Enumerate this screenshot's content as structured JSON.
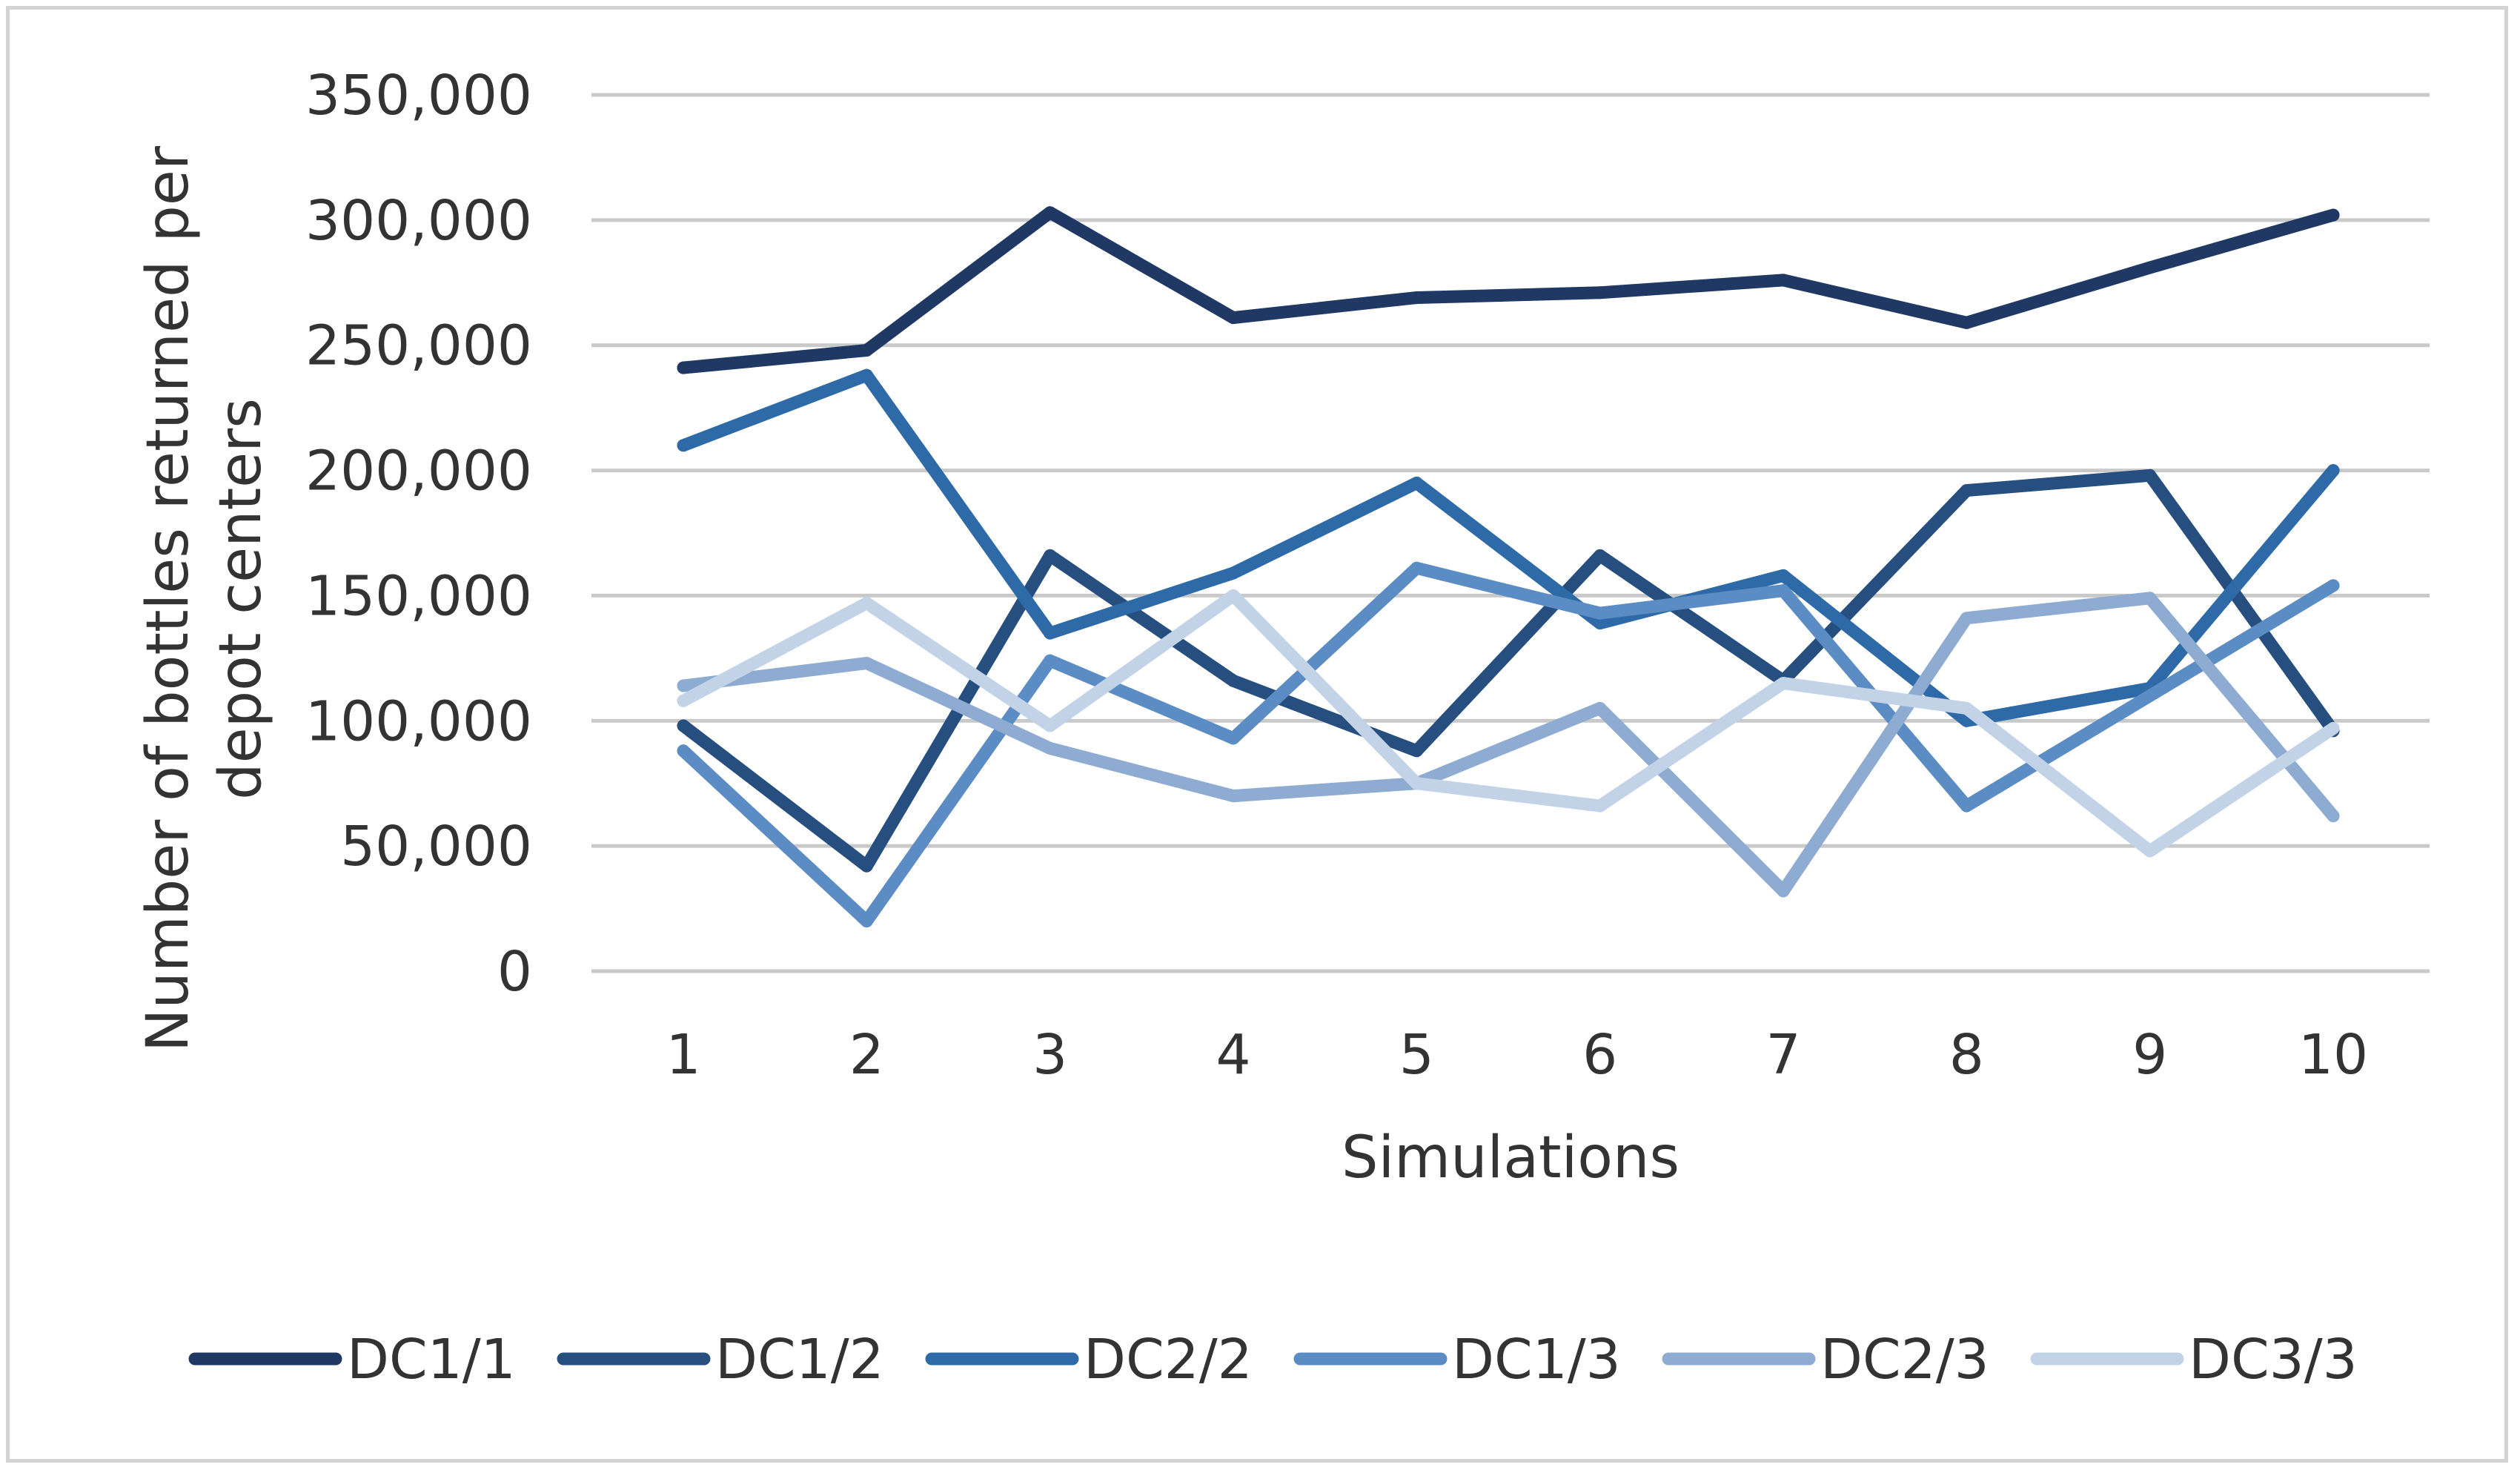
{
  "chart_data": {
    "type": "line",
    "title": "",
    "xlabel": "Simulations",
    "ylabel": "Number of bottles returned per depot centers",
    "ylabel_lines": [
      "Number of bottles returned per",
      "depot centers"
    ],
    "x": [
      1,
      2,
      3,
      4,
      5,
      6,
      7,
      8,
      9,
      10
    ],
    "x_tick_labels": [
      "1",
      "2",
      "3",
      "4",
      "5",
      "6",
      "7",
      "8",
      "9",
      "10"
    ],
    "ylim": [
      0,
      350000
    ],
    "y_ticks": [
      0,
      50000,
      100000,
      150000,
      200000,
      250000,
      300000,
      350000
    ],
    "y_tick_labels": [
      "0",
      "50,000",
      "100,000",
      "150,000",
      "200,000",
      "250,000",
      "300,000",
      "350,000"
    ],
    "grid": true,
    "legend_position": "bottom",
    "series": [
      {
        "name": "DC1/1",
        "color": "#1f3864",
        "values": [
          241000,
          248000,
          303000,
          261000,
          269000,
          271000,
          276000,
          259000,
          281000,
          302000
        ]
      },
      {
        "name": "DC1/2",
        "color": "#264f7f",
        "values": [
          98000,
          42000,
          166000,
          116000,
          88000,
          166000,
          116000,
          192000,
          198000,
          96000
        ]
      },
      {
        "name": "DC2/2",
        "color": "#2e6aa8",
        "values": [
          210000,
          238000,
          135000,
          159000,
          195000,
          139000,
          158000,
          100000,
          113000,
          200000
        ]
      },
      {
        "name": "DC1/3",
        "color": "#5b8cc4",
        "values": [
          88000,
          20000,
          124000,
          93000,
          161000,
          143000,
          152000,
          66000,
          110000,
          154000
        ]
      },
      {
        "name": "DC2/3",
        "color": "#8eabd2",
        "values": [
          114000,
          123000,
          89000,
          70000,
          75000,
          105000,
          32000,
          141000,
          149000,
          62000
        ]
      },
      {
        "name": "DC3/3",
        "color": "#c2d3e8",
        "values": [
          108000,
          147000,
          98000,
          150000,
          75000,
          66000,
          115000,
          105000,
          48000,
          97000
        ]
      }
    ]
  }
}
